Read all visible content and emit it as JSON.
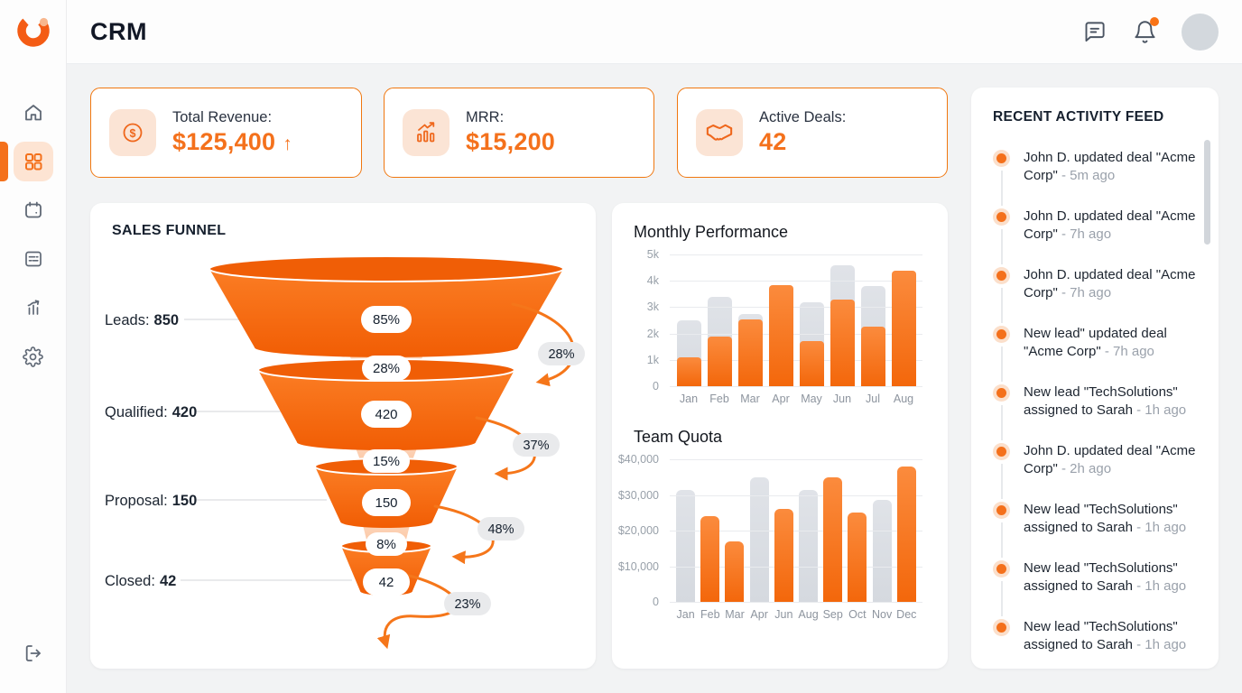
{
  "app": {
    "title": "CRM"
  },
  "sidebar": {
    "items": [
      {
        "name": "home",
        "active": false
      },
      {
        "name": "dashboard",
        "active": true
      },
      {
        "name": "calendar",
        "active": false
      },
      {
        "name": "tasks",
        "active": false
      },
      {
        "name": "analytics",
        "active": false
      },
      {
        "name": "settings",
        "active": false
      }
    ],
    "logout": "logout"
  },
  "header": {
    "icons": [
      "chat",
      "notifications",
      "avatar"
    ],
    "notification_badge": true
  },
  "kpis": [
    {
      "label": "Total Revenue:",
      "value": "$125,400",
      "trend": "↑",
      "icon": "dollar-circle-icon"
    },
    {
      "label": "MRR:",
      "value": "$15,200",
      "trend": "",
      "icon": "chart-growth-icon"
    },
    {
      "label": "Active Deals:",
      "value": "42",
      "trend": "",
      "icon": "handshake-icon"
    }
  ],
  "colors": {
    "accent": "#f4711c",
    "accent_deep": "#f3670b",
    "bar_gray": "#d9dde3",
    "text_dark": "#16202e",
    "text_muted": "#98a0a9"
  },
  "activity": {
    "title": "RECENT ACTIVITY FEED",
    "items": [
      {
        "text": "John D. updated deal \"Acme Corp\"",
        "time": "5m ago"
      },
      {
        "text": "John D. updated deal \"Acme Corp\"",
        "time": "7h ago"
      },
      {
        "text": "John D. updated deal \"Acme Corp\"",
        "time": "7h ago"
      },
      {
        "text": "New lead\" updated deal \"Acme Corp\"",
        "time": "7h ago"
      },
      {
        "text": "New lead \"TechSolutions\" assigned to Sarah",
        "time": "1h ago"
      },
      {
        "text": "John D. updated deal \"Acme Corp\"",
        "time": "2h ago"
      },
      {
        "text": "New lead \"TechSolutions\" assigned to Sarah",
        "time": "1h ago"
      },
      {
        "text": "New lead \"TechSolutions\" assigned to Sarah",
        "time": "1h ago"
      },
      {
        "text": "New lead \"TechSolutions\" assigned to Sarah",
        "time": "1h ago"
      }
    ]
  },
  "chart_data": [
    {
      "type": "funnel",
      "title": "SALES FUNNEL",
      "stages": [
        {
          "label": "Leads:",
          "value": "850",
          "badge": "85%"
        },
        {
          "label": "Qualified:",
          "value": "420",
          "badge": "420"
        },
        {
          "label": "Proposal:",
          "value": "150",
          "badge": "150"
        },
        {
          "label": "Closed:",
          "value": "42",
          "badge": "42"
        }
      ],
      "transitions": [
        {
          "between_badge": "28%",
          "side_badge": "28%"
        },
        {
          "between_badge": "15%",
          "side_badge": "37%"
        },
        {
          "between_badge": "8%",
          "side_badge": "48%"
        }
      ],
      "exit_badge": "23%"
    },
    {
      "type": "bar",
      "title": "Monthly Performance",
      "categories": [
        "Jan",
        "Feb",
        "Mar",
        "Apr",
        "May",
        "Jun",
        "Jul",
        "Aug"
      ],
      "series": [
        {
          "name": "target",
          "color": "gray",
          "values": [
            2500,
            3400,
            2750,
            3850,
            3200,
            4600,
            3800,
            4400
          ]
        },
        {
          "name": "actual",
          "color": "orange",
          "values": [
            1100,
            1900,
            2550,
            3850,
            1700,
            3300,
            2250,
            4400
          ]
        }
      ],
      "ylim": [
        0,
        5000
      ],
      "yticks": [
        "5k",
        "4k",
        "3k",
        "2k",
        "1k",
        "0"
      ],
      "grid": true,
      "legend": false
    },
    {
      "type": "bar",
      "title": "Team Quota",
      "categories": [
        "Jan",
        "Feb",
        "Mar",
        "Apr",
        "Jun",
        "Aug",
        "Sep",
        "Oct",
        "Nov",
        "Dec"
      ],
      "values": [
        31500,
        24000,
        17000,
        35000,
        26000,
        31500,
        35000,
        25000,
        28500,
        38000
      ],
      "colors": [
        "gray",
        "orange",
        "orange",
        "gray",
        "orange",
        "gray",
        "orange",
        "orange",
        "gray",
        "orange"
      ],
      "ylim": [
        0,
        40000
      ],
      "yticks": [
        "$40,000",
        "$30,000",
        "$20,000",
        "$10,000",
        "0"
      ],
      "grid": true,
      "legend": false
    }
  ]
}
